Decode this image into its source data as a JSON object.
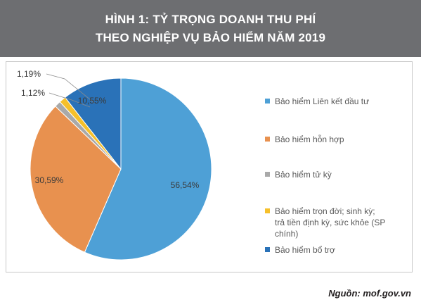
{
  "header": {
    "title_line1": "HÌNH 1: TỶ TRỌNG DOANH THU PHÍ",
    "title_line2": "THEO NGHIỆP VỤ BẢO HIỂM NĂM 2019"
  },
  "chart_data": {
    "type": "pie",
    "title": "HÌNH 1: TỶ TRỌNG DOANH THU PHÍ THEO NGHIỆP VỤ BẢO HIỂM NĂM 2019",
    "legend_position": "right",
    "slices": [
      {
        "label": "Bảo hiểm Liên kết đầu tư",
        "value": 56.54,
        "value_label": "56,54%",
        "color": "#4ea0d6"
      },
      {
        "label": "Bảo hiểm hỗn hợp",
        "value": 30.59,
        "value_label": "30,59%",
        "color": "#e8914f"
      },
      {
        "label": "Bảo hiểm tử kỳ",
        "value": 1.12,
        "value_label": "1,12%",
        "color": "#a9a9a9"
      },
      {
        "label": "Bảo hiểm trọn đời; sinh kỳ; trả tiền định kỳ, sức khỏe (SP chính)",
        "value": 1.19,
        "value_label": "1,19%",
        "color": "#f6c02b"
      },
      {
        "label": "Bảo hiểm bổ trợ",
        "value": 10.55,
        "value_label": "10,55%",
        "color": "#2a72b8"
      }
    ]
  },
  "legend": {
    "items": [
      {
        "lines": [
          "Bảo hiểm Liên kết đầu tư"
        ],
        "color": "#4ea0d6"
      },
      {
        "lines": [
          "Bảo hiểm hỗn hợp"
        ],
        "color": "#e8914f"
      },
      {
        "lines": [
          "Bảo hiểm tử kỳ"
        ],
        "color": "#a9a9a9"
      },
      {
        "lines": [
          "Bảo hiểm trọn đời; sinh kỳ;",
          "trả tiền định kỳ, sức khỏe (SP",
          "chính)"
        ],
        "color": "#f6c02b"
      },
      {
        "lines": [
          "Bảo hiểm bổ trợ"
        ],
        "color": "#2a72b8"
      }
    ]
  },
  "source": "Nguồn: mof.gov.vn"
}
